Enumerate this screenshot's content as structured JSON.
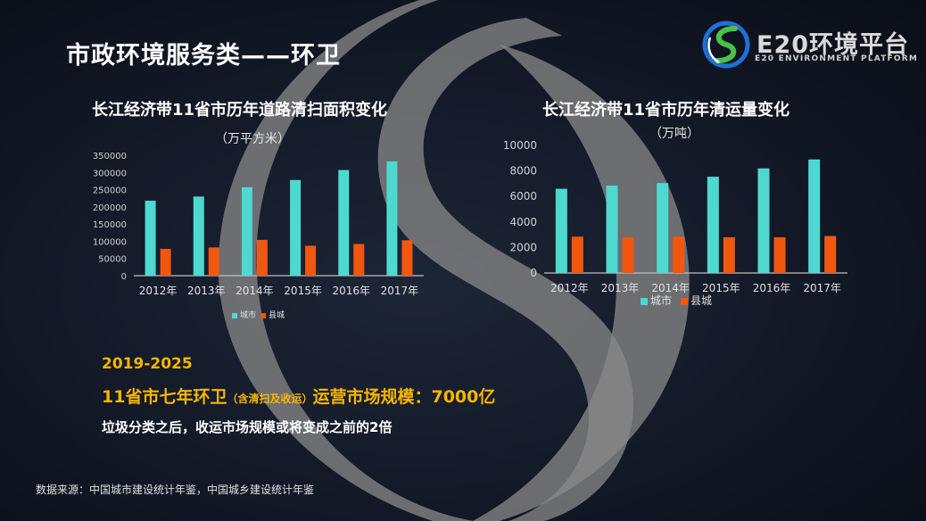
{
  "page": {
    "title": "市政环境服务类——环卫",
    "logo": {
      "name": "E20环境平台",
      "subtitle": "E20 ENVIRONMENT PLATFORM"
    }
  },
  "charts": {
    "left": {
      "title": "长江经济带11省市历年道路清扫面积变化",
      "unit": "（万平方米）"
    },
    "right": {
      "title": "长江经济带11省市历年清运量变化",
      "unit": "（万吨）"
    }
  },
  "highlight": {
    "years": "2019-2025",
    "line_a": "11省市七年环卫",
    "line_small": "（含清扫及收运）",
    "line_b": "运营市场规模：7000亿",
    "note": "垃圾分类之后，收运市场规模或将变成之前的2倍"
  },
  "source": "数据来源：中国城市建设统计年鉴，中国城乡建设统计年鉴",
  "colors": {
    "city": "#4dd9d0",
    "county": "#f2570f"
  },
  "chart_data": [
    {
      "type": "bar",
      "title": "长江经济带11省市历年道路清扫面积变化",
      "unit": "（万平方米）",
      "categories": [
        "2012年",
        "2013年",
        "2014年",
        "2015年",
        "2016年",
        "2017年"
      ],
      "series": [
        {
          "name": "城市",
          "values": [
            218000,
            230000,
            257000,
            278000,
            307000,
            332000
          ]
        },
        {
          "name": "县城",
          "values": [
            78000,
            82000,
            104000,
            87000,
            92000,
            103000
          ]
        }
      ],
      "ylim": [
        0,
        350000
      ],
      "yticks": [
        "0",
        "50000",
        "100000",
        "150000",
        "200000",
        "250000",
        "300000",
        "350000"
      ],
      "legend": "bottom",
      "grid": false
    },
    {
      "type": "bar",
      "title": "长江经济带11省市历年清运量变化",
      "unit": "（万吨）",
      "categories": [
        "2012年",
        "2013年",
        "2014年",
        "2015年",
        "2016年",
        "2017年"
      ],
      "series": [
        {
          "name": "城市",
          "values": [
            6600,
            6850,
            7050,
            7550,
            8200,
            8900
          ]
        },
        {
          "name": "县城",
          "values": [
            2850,
            2800,
            2850,
            2800,
            2800,
            2900
          ]
        }
      ],
      "ylim": [
        0,
        10000
      ],
      "yticks": [
        "0",
        "2000",
        "4000",
        "6000",
        "8000",
        "10000"
      ],
      "legend": "bottom",
      "grid": false
    }
  ]
}
